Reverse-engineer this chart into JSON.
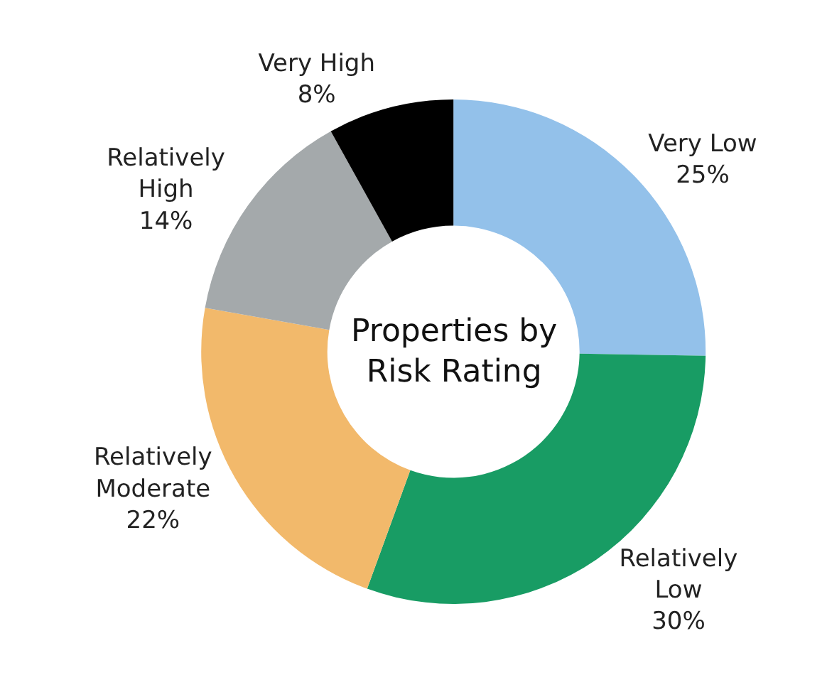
{
  "chart_data": {
    "type": "donut",
    "title": "Properties by Risk Rating",
    "categories": [
      "Very Low",
      "Relatively Low",
      "Relatively Moderate",
      "Relatively High",
      "Very High"
    ],
    "values": [
      25,
      30,
      22,
      14,
      8
    ],
    "value_labels": [
      "25%",
      "30%",
      "22%",
      "14%",
      "8%"
    ],
    "colors": [
      "#93c1ea",
      "#189c64",
      "#f2b96b",
      "#a4a9ab",
      "#000000"
    ],
    "legend": false
  }
}
